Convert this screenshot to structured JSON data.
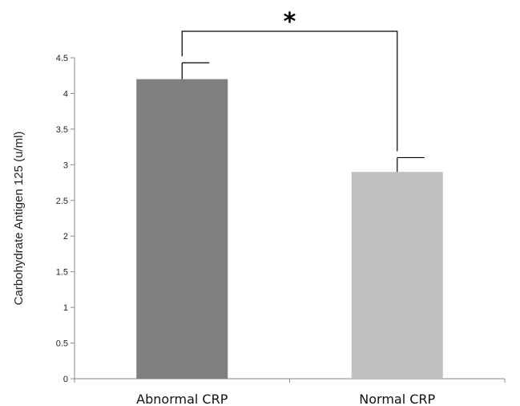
{
  "chart_data": {
    "type": "bar",
    "categories": [
      "Abnormal CRP",
      "Normal CRP"
    ],
    "values": [
      4.2,
      2.9
    ],
    "errors": [
      0.23,
      0.2
    ],
    "ylabel": "Carbohydrate Antigen 125 (u/ml)",
    "xlabel": "",
    "ylim": [
      0,
      4.5
    ],
    "yticks": [
      "0",
      "0.5",
      "1",
      "1.5",
      "2",
      "2.5",
      "3",
      "3.5",
      "4",
      "4.5"
    ],
    "bar_colors": [
      "#7f7f7f",
      "#c0c0c0"
    ],
    "grid": false,
    "significance": {
      "label": "*",
      "between": [
        "Abnormal CRP",
        "Normal CRP"
      ]
    }
  }
}
